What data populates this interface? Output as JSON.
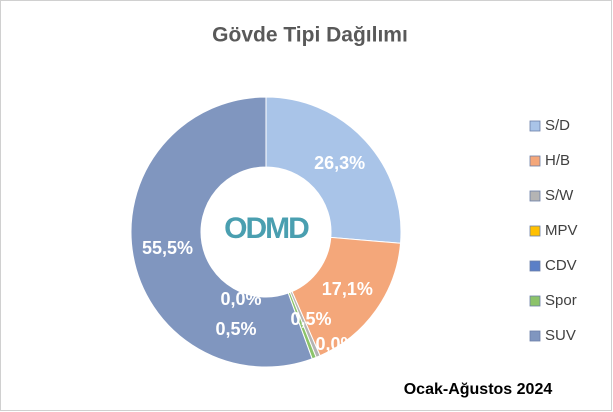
{
  "chart_data": {
    "type": "donut",
    "title": "Gövde Tipi Dağılımı",
    "subtitle": "Ocak-Ağustos 2024",
    "logo": "ODMD",
    "categories": [
      "S/D",
      "H/B",
      "S/W",
      "MPV",
      "CDV",
      "Spor",
      "SUV"
    ],
    "values": [
      26.3,
      17.1,
      0.5,
      0.0,
      0.0,
      0.5,
      55.5
    ],
    "value_labels": [
      "26,3%",
      "17,1%",
      "0,5%",
      "0,0%",
      "0,0%",
      "0,5%",
      "55,5%"
    ],
    "colors": [
      "#a9c4e8",
      "#f4a77a",
      "#b4b4b4",
      "#ffc000",
      "#5b7fc7",
      "#8cc36a",
      "#8096bf"
    ],
    "legend": "right"
  }
}
